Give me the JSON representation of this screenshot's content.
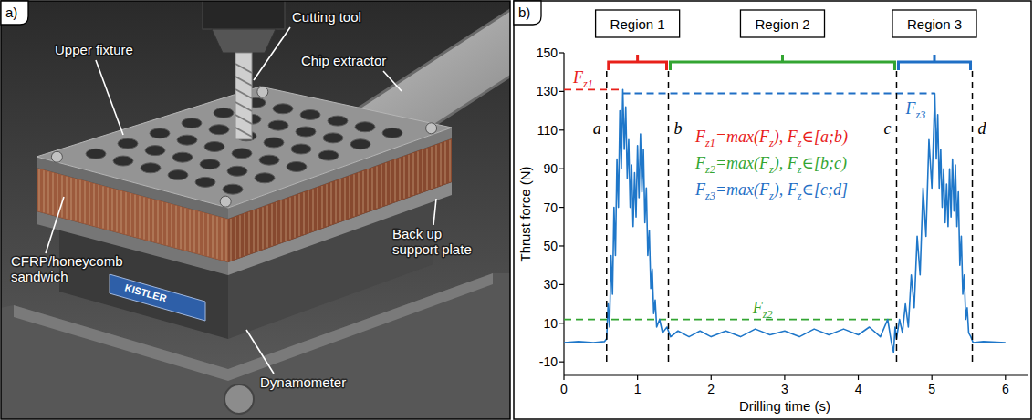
{
  "photo": {
    "panel_label": "a)",
    "labels": [
      "Cutting tool",
      "Upper fixture",
      "Chip extractor",
      "CFRP/honeycomb sandwich",
      "Back up support plate",
      "Dynamometer"
    ],
    "nameplate": "KISTLER"
  },
  "chart_data": {
    "type": "line",
    "panel_label": "b)",
    "x_label": "Drilling time (s)",
    "y_label": "Thrust force (N)",
    "xlim": [
      0,
      6.3
    ],
    "ylim": [
      -17,
      150
    ],
    "xticks": [
      0,
      1,
      2,
      3,
      4,
      5,
      6
    ],
    "yticks": [
      -10,
      10,
      30,
      50,
      70,
      90,
      110,
      130,
      150
    ],
    "grid": false,
    "color": "#1f77c9",
    "x": [
      0,
      0.2,
      0.4,
      0.55,
      0.58,
      0.6,
      0.62,
      0.64,
      0.66,
      0.68,
      0.7,
      0.72,
      0.74,
      0.76,
      0.78,
      0.8,
      0.82,
      0.84,
      0.86,
      0.88,
      0.9,
      0.92,
      0.94,
      0.96,
      0.98,
      1.0,
      1.02,
      1.04,
      1.06,
      1.08,
      1.1,
      1.12,
      1.14,
      1.16,
      1.18,
      1.2,
      1.22,
      1.24,
      1.26,
      1.3,
      1.34,
      1.4,
      1.45,
      1.55,
      1.7,
      1.85,
      2.0,
      2.2,
      2.4,
      2.6,
      2.8,
      3.0,
      3.2,
      3.4,
      3.6,
      3.8,
      4.0,
      4.15,
      4.3,
      4.4,
      4.45,
      4.48,
      4.5,
      4.52,
      4.56,
      4.6,
      4.64,
      4.68,
      4.72,
      4.76,
      4.8,
      4.84,
      4.88,
      4.92,
      4.96,
      5.0,
      5.04,
      5.06,
      5.08,
      5.1,
      5.12,
      5.14,
      5.16,
      5.18,
      5.2,
      5.22,
      5.24,
      5.26,
      5.28,
      5.3,
      5.32,
      5.34,
      5.36,
      5.38,
      5.4,
      5.42,
      5.44,
      5.46,
      5.48,
      5.5,
      5.53,
      5.56,
      5.7,
      6.0
    ],
    "values": [
      0,
      0.5,
      0,
      0.5,
      2,
      20,
      8,
      45,
      25,
      70,
      45,
      95,
      70,
      120,
      90,
      131,
      100,
      122,
      85,
      105,
      70,
      92,
      60,
      88,
      65,
      102,
      75,
      108,
      78,
      100,
      62,
      80,
      45,
      58,
      28,
      38,
      15,
      22,
      8,
      12,
      5,
      8,
      3,
      6,
      3,
      6,
      3,
      6,
      3,
      7,
      4,
      6,
      3,
      7,
      4,
      7,
      4,
      8,
      3,
      12,
      0,
      -5,
      8,
      2,
      12,
      5,
      20,
      8,
      35,
      18,
      55,
      35,
      80,
      55,
      105,
      80,
      129,
      95,
      118,
      80,
      100,
      70,
      90,
      62,
      82,
      60,
      90,
      65,
      95,
      68,
      92,
      60,
      78,
      40,
      55,
      25,
      35,
      12,
      18,
      5,
      3,
      0,
      0.5,
      0
    ],
    "regions": [
      {
        "label": "Region 1",
        "start": 0.58,
        "end": 1.42,
        "color": "#e8201a"
      },
      {
        "label": "Region 2",
        "start": 1.42,
        "end": 4.52,
        "color": "#33a532"
      },
      {
        "label": "Region 3",
        "start": 4.52,
        "end": 5.55,
        "color": "#1f6fc5"
      }
    ],
    "boundaries": [
      {
        "label": "a",
        "x": 0.58
      },
      {
        "label": "b",
        "x": 1.42
      },
      {
        "label": "c",
        "x": 4.52
      },
      {
        "label": "d",
        "x": 5.55
      }
    ],
    "reference_lines": [
      {
        "label": "Fz1",
        "value": 131,
        "x_start": 0,
        "x_end": 0.8,
        "color": "#e8201a"
      },
      {
        "label": "Fz2",
        "value": 12,
        "x_start": 0,
        "x_end": 4.5,
        "color": "#33a532"
      },
      {
        "label": "Fz3",
        "value": 129,
        "x_start": 0.8,
        "x_end": 5.04,
        "color": "#1f6fc5"
      }
    ],
    "equations": [
      {
        "text": "Fz1=max(Fz), Fz∈[a;b)",
        "color": "#e8201a"
      },
      {
        "text": "Fz2=max(Fz), Fz∈[b;c)",
        "color": "#33a532"
      },
      {
        "text": "Fz3=max(Fz), Fz∈[c;d]",
        "color": "#1f6fc5"
      }
    ]
  }
}
